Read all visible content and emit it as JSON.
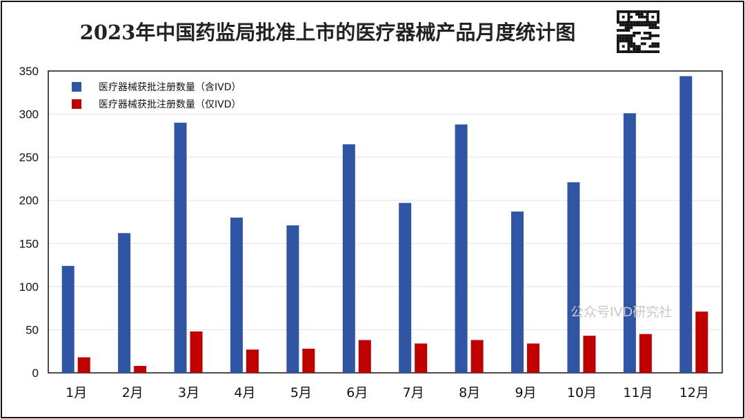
{
  "title": "2023年中国药监局批准上市的医疗器械产品月度统计图",
  "watermark": "公众号IVD研究社",
  "qr_icon": "qr-code-icon",
  "chart_data": {
    "type": "bar",
    "title": "2023年中国药监局批准上市的医疗器械产品月度统计图",
    "xlabel": "",
    "ylabel": "",
    "ylim": [
      0,
      350
    ],
    "yticks": [
      0,
      50,
      100,
      150,
      200,
      250,
      300,
      350
    ],
    "grid": true,
    "legend_position": "top-left",
    "categories": [
      "1月",
      "2月",
      "3月",
      "4月",
      "5月",
      "6月",
      "7月",
      "8月",
      "9月",
      "10月",
      "11月",
      "12月"
    ],
    "series": [
      {
        "name": "医疗器械获批注册数量（含IVD）",
        "color": "#2f55a4",
        "values": [
          124,
          162,
          290,
          180,
          171,
          265,
          197,
          288,
          187,
          221,
          301,
          344
        ]
      },
      {
        "name": "医疗器械获批注册数量（仅IVD）",
        "color": "#c00000",
        "values": [
          18,
          8,
          48,
          27,
          28,
          38,
          34,
          38,
          34,
          43,
          45,
          71
        ]
      }
    ]
  }
}
